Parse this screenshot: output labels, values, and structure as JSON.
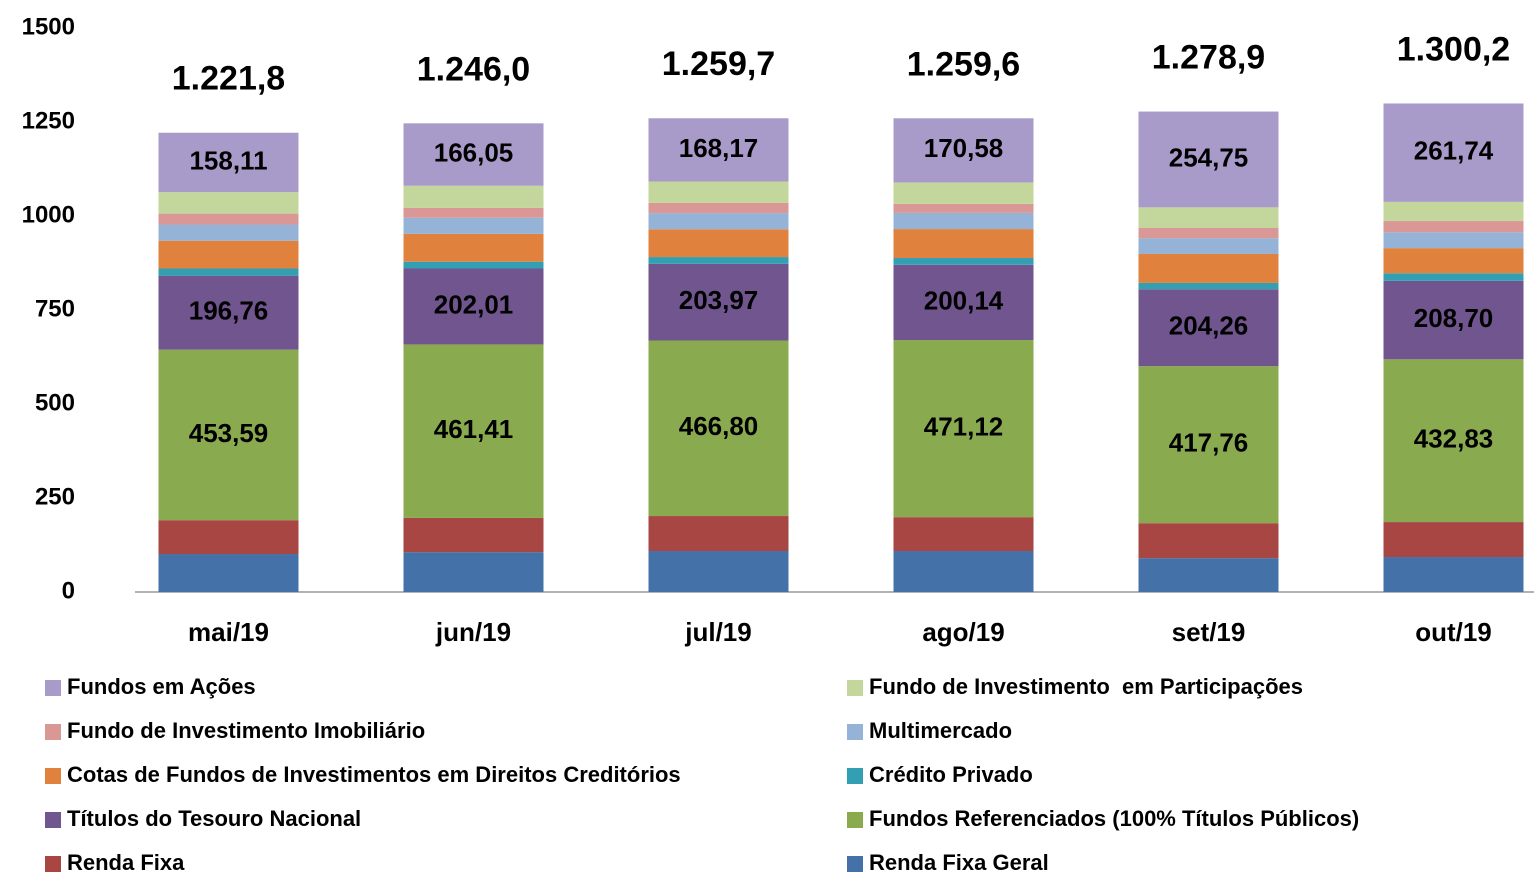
{
  "chart_data": {
    "type": "stacked_bar",
    "categories": [
      "mai/19",
      "jun/19",
      "jul/19",
      "ago/19",
      "set/19",
      "out/19"
    ],
    "ylim": [
      0,
      1500
    ],
    "yticks": [
      0,
      250,
      500,
      750,
      1000,
      1250,
      1500
    ],
    "series": [
      {
        "name": "Renda Fixa Geral",
        "color": "#4472a8",
        "values": [
          101,
          106,
          109,
          109,
          90,
          93
        ]
      },
      {
        "name": "Renda Fixa",
        "color": "#a84643",
        "values": [
          90,
          91,
          93,
          90,
          93,
          93
        ]
      },
      {
        "name": "Fundos Referenciados (100% Títulos Públicos)",
        "color": "#8aaa4f",
        "values": [
          453.59,
          461.41,
          466.8,
          471.12,
          417.76,
          432.83
        ],
        "value_labels": [
          "453,59",
          "461,41",
          "466,80",
          "471,12",
          "417,76",
          "432,83"
        ]
      },
      {
        "name": "Títulos do Tesouro Nacional",
        "color": "#70558f",
        "values": [
          196.76,
          202.01,
          203.97,
          200.14,
          204.26,
          208.7
        ],
        "value_labels": [
          "196,76",
          "202,01",
          "203,97",
          "200,14",
          "204,26",
          "208,70"
        ]
      },
      {
        "name": "Crédito Privado",
        "color": "#339fb3",
        "values": [
          19,
          18,
          18,
          18,
          17,
          20
        ]
      },
      {
        "name": "Cotas de Fundos de Investimentos em Direitos Creditórios",
        "color": "#e0823d",
        "values": [
          74,
          74,
          74,
          77,
          77,
          67
        ]
      },
      {
        "name": "Multimercado",
        "color": "#95b3d7",
        "values": [
          43,
          43,
          43,
          43,
          42,
          42
        ]
      },
      {
        "name": "Fundo de Investimento Imobiliário",
        "color": "#d99795",
        "values": [
          29,
          26,
          27,
          24,
          27,
          30
        ]
      },
      {
        "name": "Fundo de Investimento  em Participações",
        "color": "#c3d69b",
        "values": [
          57,
          59,
          57,
          57,
          55,
          51
        ]
      },
      {
        "name": "Fundos em Ações",
        "color": "#a99bc9",
        "values": [
          158.11,
          166.05,
          168.17,
          170.58,
          254.75,
          261.74
        ],
        "value_labels": [
          "158,11",
          "166,05",
          "168,17",
          "170,58",
          "254,75",
          "261,74"
        ]
      }
    ],
    "totals": {
      "values": [
        1221.8,
        1246.0,
        1259.7,
        1259.6,
        1278.9,
        1300.2
      ],
      "value_labels": [
        "1.221,8",
        "1.246,0",
        "1.259,7",
        "1.259,6",
        "1.278,9",
        "1.300,2"
      ]
    }
  }
}
